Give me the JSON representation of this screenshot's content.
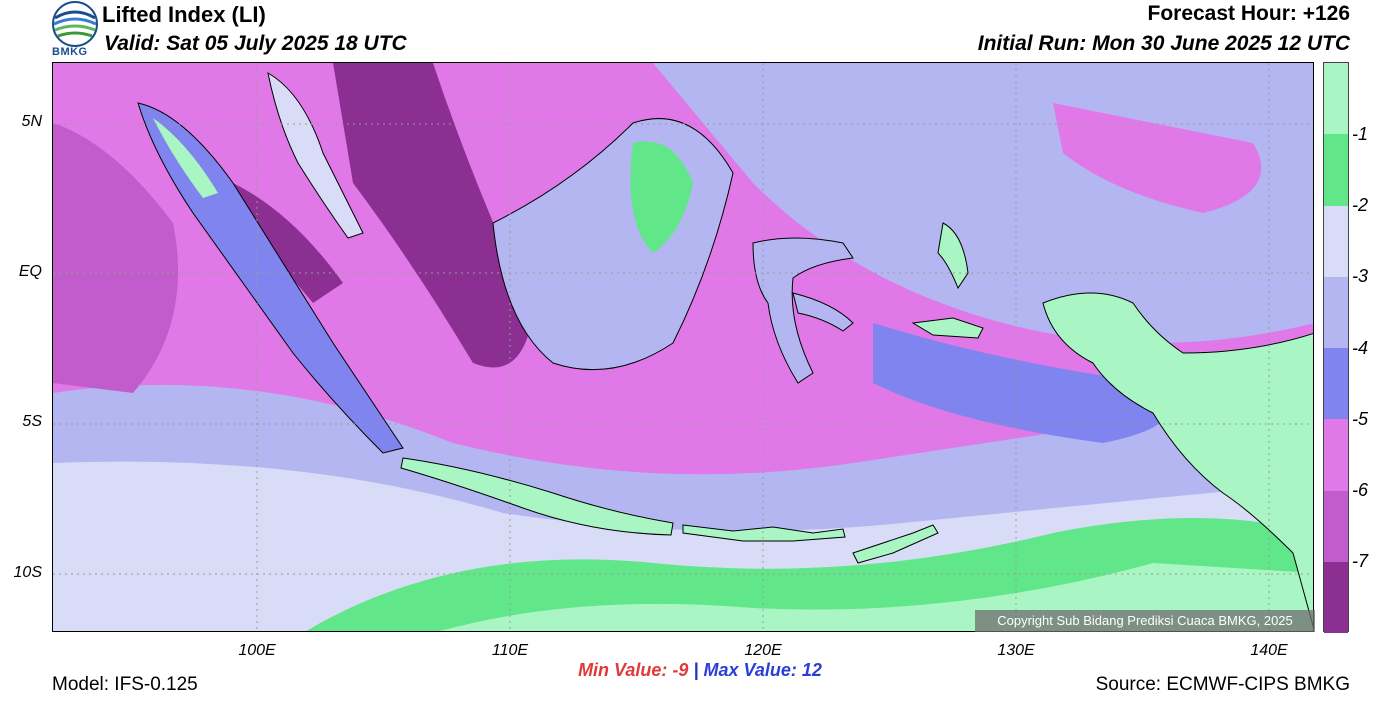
{
  "header": {
    "title": "Lifted Index (LI)",
    "valid": "Valid: Sat 05 July 2025 18 UTC",
    "forecast_hour": "Forecast Hour: +126",
    "initial_run": "Initial Run: Mon 30 June 2025 12 UTC",
    "logo_text": "BMKG"
  },
  "axes": {
    "y_labels": [
      "5N",
      "EQ",
      "5S",
      "10S"
    ],
    "x_labels": [
      "100E",
      "110E",
      "120E",
      "130E",
      "140E"
    ]
  },
  "legend": {
    "labels": [
      "-1",
      "-2",
      "-3",
      "-4",
      "-5",
      "-6",
      "-7"
    ],
    "colors": [
      "#a9f5c4",
      "#62e68a",
      "#d9dcf7",
      "#b3b6f1",
      "#7f84ee",
      "#e079e7",
      "#c25bcb",
      "#8c2f93"
    ]
  },
  "stats": {
    "min_label": "Min Value:",
    "min_value": "-9",
    "separator": "|",
    "max_label": "Max Value:",
    "max_value": "12"
  },
  "footer": {
    "model": "Model: IFS-0.125",
    "source": "Source: ECMWF-CIPS BMKG",
    "copyright": "Copyright Sub Bidang Prediksi Cuaca BMKG, 2025"
  },
  "colors": {
    "sea_deep": "#8c2f93",
    "sea_mid": "#c25bcb",
    "sea_light": "#e079e7",
    "purple_blue": "#7f84ee",
    "lavender": "#b3b6f1",
    "pale": "#d9dcf7",
    "green": "#62e68a",
    "mint": "#a9f5c4"
  }
}
